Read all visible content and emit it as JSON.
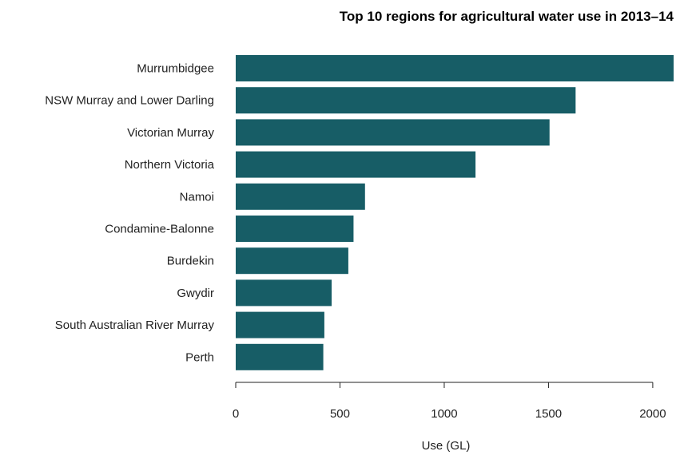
{
  "chart_data": {
    "type": "bar",
    "orientation": "horizontal",
    "title": "Top 10 regions for agricultural water use in 2013–14",
    "xlabel": "Use (GL)",
    "ylabel": "",
    "categories": [
      "Murrumbidgee",
      "NSW Murray and Lower Darling",
      "Victorian Murray",
      "Northern Victoria",
      "Namoi",
      "Condamine-Balonne",
      "Burdekin",
      "Gwydir",
      "South Australian River Murray",
      "Perth"
    ],
    "values": [
      2100,
      1630,
      1505,
      1150,
      620,
      565,
      540,
      460,
      425,
      420
    ],
    "xlim": [
      0,
      2100
    ],
    "xticks": [
      0,
      500,
      1000,
      1500,
      2000
    ],
    "xtick_labels": [
      "0",
      "500",
      "1000",
      "1500",
      "2000"
    ],
    "grid": false,
    "legend": "none",
    "bar_color": "#175d66"
  }
}
